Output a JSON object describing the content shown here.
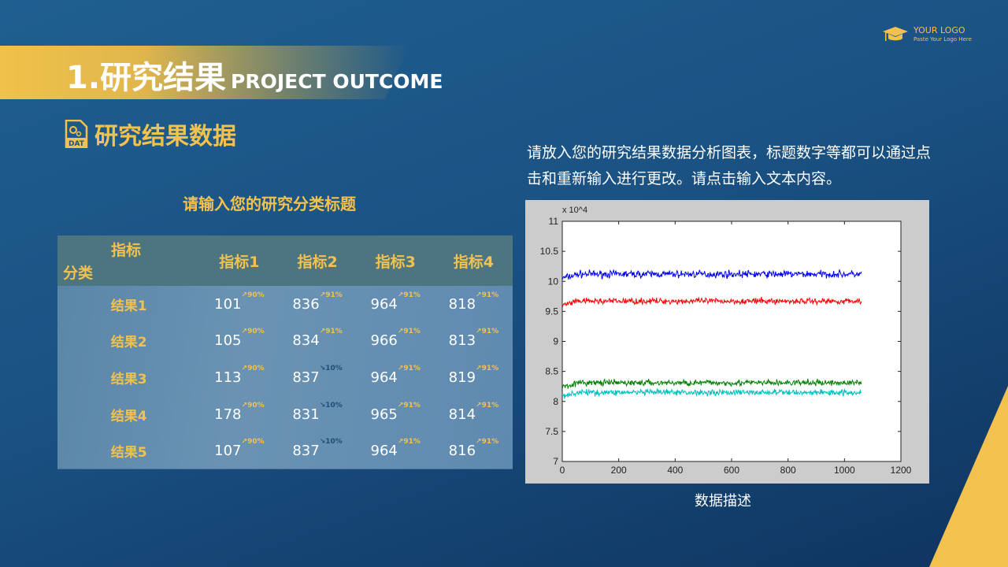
{
  "header": {
    "title_number_cn": "1.研究结果",
    "title_en": "PROJECT OUTCOME"
  },
  "logo": {
    "line1": "YOUR LOGO",
    "line2": "Paste Your Logo Here",
    "icon": "graduation-cap-icon"
  },
  "section": {
    "icon": "dat-file-icon",
    "title": "研究结果数据"
  },
  "table": {
    "caption": "请输入您的研究分类标题",
    "corner_top": "指标",
    "corner_bottom": "分类",
    "columns": [
      "指标1",
      "指标2",
      "指标3",
      "指标4"
    ],
    "rows": [
      {
        "label": "结果1",
        "cells": [
          {
            "v": "101",
            "t": "90%",
            "d": "up"
          },
          {
            "v": "836",
            "t": "91%",
            "d": "up"
          },
          {
            "v": "964",
            "t": "91%",
            "d": "up"
          },
          {
            "v": "818",
            "t": "91%",
            "d": "up"
          }
        ]
      },
      {
        "label": "结果2",
        "cells": [
          {
            "v": "105",
            "t": "90%",
            "d": "up"
          },
          {
            "v": "834",
            "t": "91%",
            "d": "up"
          },
          {
            "v": "966",
            "t": "91%",
            "d": "up"
          },
          {
            "v": "813",
            "t": "91%",
            "d": "up"
          }
        ]
      },
      {
        "label": "结果3",
        "cells": [
          {
            "v": "113",
            "t": "90%",
            "d": "up"
          },
          {
            "v": "837",
            "t": "10%",
            "d": "down"
          },
          {
            "v": "964",
            "t": "91%",
            "d": "up"
          },
          {
            "v": "819",
            "t": "91%",
            "d": "up"
          }
        ]
      },
      {
        "label": "结果4",
        "cells": [
          {
            "v": "178",
            "t": "90%",
            "d": "up"
          },
          {
            "v": "831",
            "t": "10%",
            "d": "down"
          },
          {
            "v": "965",
            "t": "91%",
            "d": "up"
          },
          {
            "v": "814",
            "t": "91%",
            "d": "up"
          }
        ]
      },
      {
        "label": "结果5",
        "cells": [
          {
            "v": "107",
            "t": "90%",
            "d": "up"
          },
          {
            "v": "837",
            "t": "10%",
            "d": "down"
          },
          {
            "v": "964",
            "t": "91%",
            "d": "up"
          },
          {
            "v": "816",
            "t": "91%",
            "d": "up"
          }
        ]
      }
    ]
  },
  "description": "请放入您的研究结果数据分析图表，标题数字等都可以通过点击和重新输入进行更改。请点击输入文本内容。",
  "chart_caption": "数据描述",
  "colors": {
    "accent": "#f2c14e",
    "background": "#1a5283"
  },
  "chart_data": {
    "type": "line",
    "xlim": [
      0,
      1200
    ],
    "ylim": [
      7,
      11
    ],
    "x_ticks": [
      "0",
      "200",
      "400",
      "600",
      "800",
      "1000",
      "1200"
    ],
    "y_ticks": [
      "7",
      "7.5",
      "8",
      "8.5",
      "9",
      "9.5",
      "10",
      "10.5",
      "11"
    ],
    "y_multiplier": "x 10^4",
    "x_range": [
      0,
      1060
    ],
    "series": [
      {
        "color": "#0000ff",
        "mean": 10.12,
        "noise": 0.06,
        "start": 10.05
      },
      {
        "color": "#ff0000",
        "mean": 9.67,
        "noise": 0.05,
        "start": 9.6
      },
      {
        "color": "#008000",
        "mean": 8.31,
        "noise": 0.05,
        "start": 8.25
      },
      {
        "color": "#00bfbf",
        "mean": 8.15,
        "noise": 0.05,
        "start": 8.1
      }
    ]
  }
}
